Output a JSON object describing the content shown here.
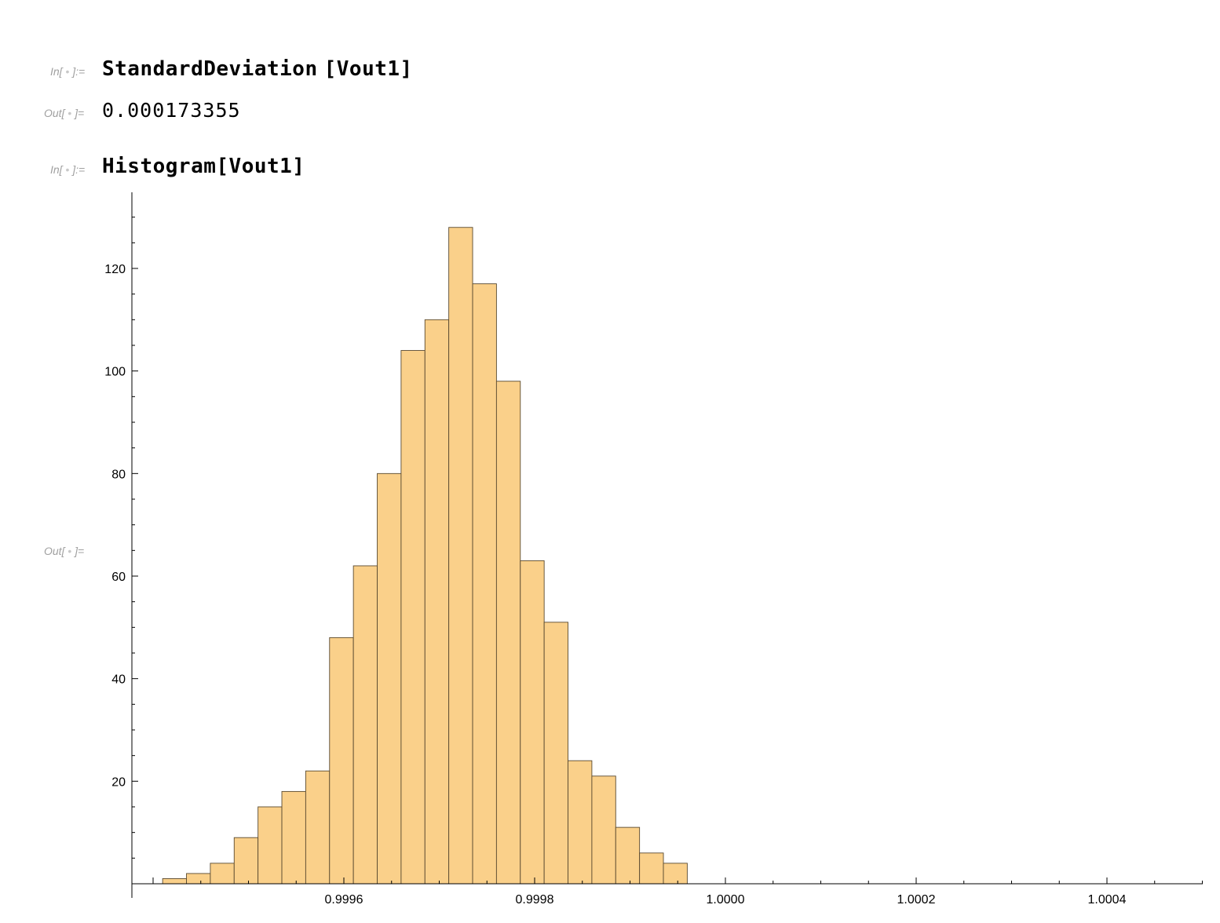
{
  "cells": [
    {
      "in_label": "In[",
      "label_mid": "]:=",
      "code_fn": "StandardDeviation",
      "code_arg": "[Vout1]"
    },
    {
      "out_label": "Out[",
      "label_mid": "]=",
      "result": "0.000173355"
    },
    {
      "in_label": "In[",
      "label_mid": "]:=",
      "code_fn": "Histogram",
      "code_arg": "[Vout1]"
    },
    {
      "out_label": "Out[",
      "label_mid": "]="
    }
  ],
  "colors": {
    "bar_fill": "#fad08a",
    "bar_stroke": "#5a4a30",
    "axis": "#000000",
    "label": "#a0a0a0"
  },
  "chart_data": {
    "type": "bar",
    "bin_width": 2.5e-05,
    "bin_start": 0.99941,
    "counts": [
      1,
      2,
      4,
      9,
      15,
      18,
      22,
      48,
      62,
      80,
      104,
      110,
      128,
      117,
      98,
      63,
      51,
      24,
      21,
      11,
      6,
      4
    ],
    "xlim": [
      0.999382,
      1.000505
    ],
    "ylim": [
      0,
      135
    ],
    "x_ticks": [
      {
        "value": 0.9996,
        "label": "0.9996"
      },
      {
        "value": 0.9998,
        "label": "0.9998"
      },
      {
        "value": 1.0,
        "label": "1.0000"
      },
      {
        "value": 1.0002,
        "label": "1.0002"
      },
      {
        "value": 1.0004,
        "label": "1.0004"
      }
    ],
    "y_ticks": [
      {
        "value": 20,
        "label": "20"
      },
      {
        "value": 40,
        "label": "40"
      },
      {
        "value": 60,
        "label": "60"
      },
      {
        "value": 80,
        "label": "80"
      },
      {
        "value": 100,
        "label": "100"
      },
      {
        "value": 120,
        "label": "120"
      }
    ],
    "title": "",
    "xlabel": "",
    "ylabel": "",
    "grid": false
  }
}
